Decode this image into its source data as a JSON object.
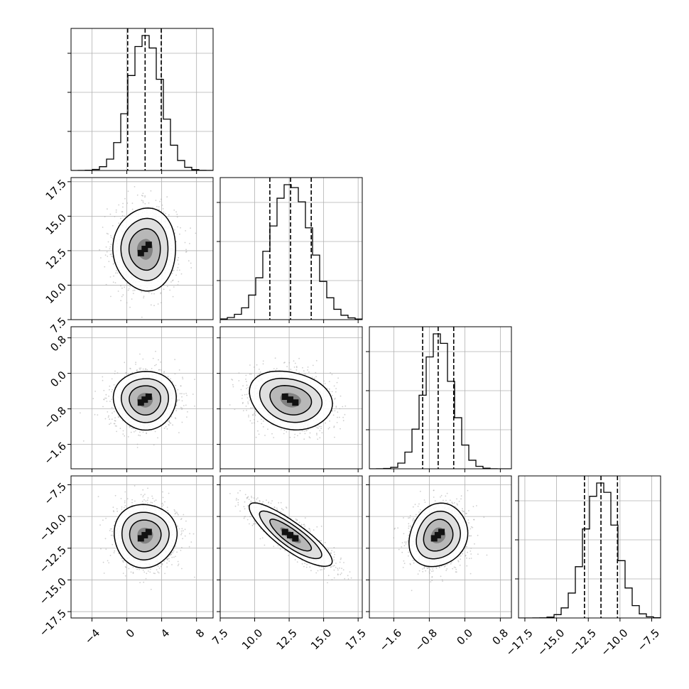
{
  "chart_data": {
    "type": "corner",
    "title": "",
    "parameters": [
      {
        "name": "",
        "range": [
          -6.4,
          9.9
        ],
        "ticks": [
          -4,
          0,
          4,
          8
        ],
        "tick_labels": [
          "−4",
          "0",
          "4",
          "8"
        ],
        "mean": 2.1,
        "sd": 1.8,
        "quantiles": [
          0.1,
          2.1,
          3.95
        ]
      },
      {
        "name": "",
        "range": [
          7.5,
          17.8
        ],
        "ticks": [
          7.5,
          10.0,
          12.5,
          15.0,
          17.5
        ],
        "tick_labels": [
          "7.5",
          "10.0",
          "12.5",
          "15.0",
          "17.5"
        ],
        "mean": 12.6,
        "sd": 1.5,
        "quantiles": [
          11.1,
          12.6,
          14.1
        ]
      },
      {
        "name": "",
        "range": [
          -2.15,
          1.05
        ],
        "ticks": [
          -1.6,
          -0.8,
          0.0,
          0.8
        ],
        "tick_labels": [
          "−1.6",
          "−0.8",
          "0.0",
          "0.8"
        ],
        "mean": -0.6,
        "sd": 0.33,
        "quantiles": [
          -0.95,
          -0.6,
          -0.25
        ]
      },
      {
        "name": "",
        "range": [
          -18.0,
          -6.8
        ],
        "ticks": [
          -17.5,
          -15.0,
          -12.5,
          -10.0,
          -7.5
        ],
        "tick_labels": [
          "−17.5",
          "−15.0",
          "−12.5",
          "−10.0",
          "−7.5"
        ],
        "mean": -11.5,
        "sd": 1.25,
        "quantiles": [
          -12.8,
          -11.5,
          -10.2
        ]
      }
    ],
    "correlations": {
      "1-0": 0.0,
      "2-0": 0.0,
      "2-1": -0.2,
      "3-0": 0.0,
      "3-1": -0.85,
      "3-2": 0.15
    },
    "histogram": {
      "bins": 20,
      "style": "step",
      "quantile_lines": "dashed"
    },
    "contours": {
      "levels": [
        0.5,
        1.0,
        1.5,
        2.0
      ],
      "color": "#000000",
      "scatter_color": "#a8a8a8"
    },
    "grid": true
  }
}
